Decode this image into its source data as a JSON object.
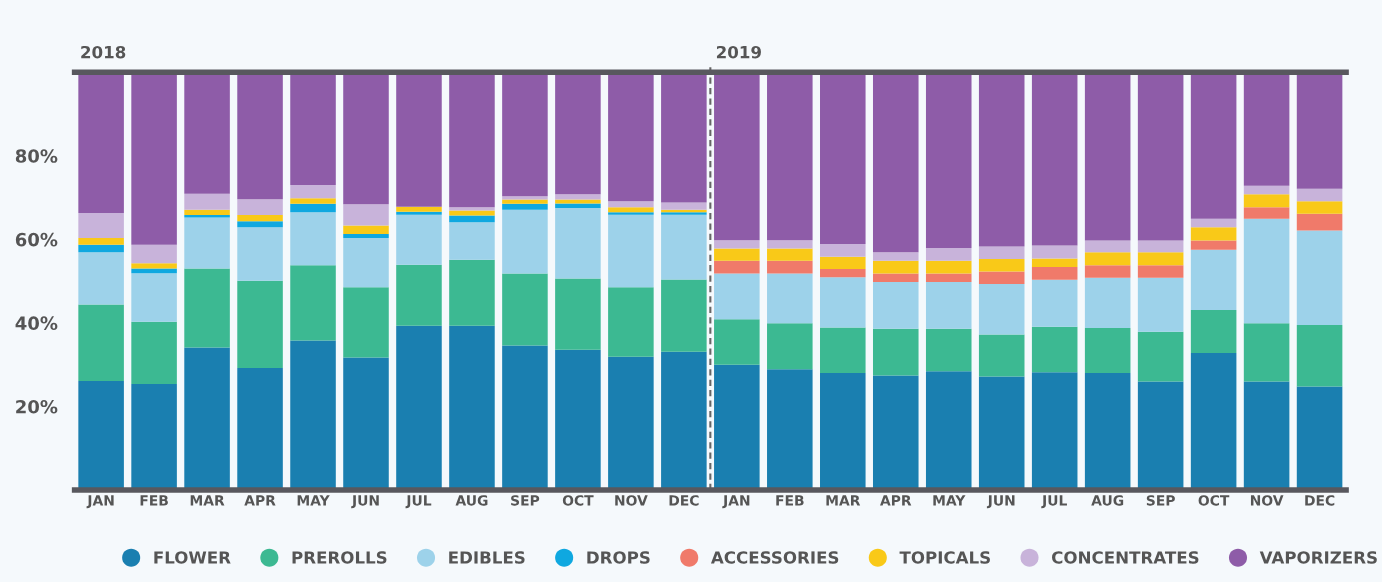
{
  "chart_data": {
    "type": "bar",
    "stacked": true,
    "categories": [
      "JAN",
      "FEB",
      "MAR",
      "APR",
      "MAY",
      "JUN",
      "JUL",
      "AUG",
      "SEP",
      "OCT",
      "NOV",
      "DEC",
      "JAN",
      "FEB",
      "MAR",
      "APR",
      "MAY",
      "JUN",
      "JUL",
      "AUG",
      "SEP",
      "OCT",
      "NOV",
      "DEC"
    ],
    "series": [
      {
        "name": "FLOWER",
        "color": "#1a7fb0",
        "values": [
          26.1,
          25.4,
          34.1,
          29.2,
          35.8,
          31.7,
          39.3,
          39.3,
          34.6,
          33.6,
          31.9,
          33.1,
          30,
          28.9,
          28,
          27.4,
          28.4,
          27.2,
          28.2,
          28,
          26,
          32.8,
          26,
          24.8
        ]
      },
      {
        "name": "PREROLLS",
        "color": "#3cb992",
        "values": [
          18.3,
          14.9,
          18.9,
          20.9,
          18,
          16.8,
          14.6,
          15.8,
          17.2,
          17,
          16.6,
          17.3,
          10.9,
          11,
          10.9,
          11.2,
          10.2,
          10,
          10.9,
          10.8,
          11.9,
          10.3,
          13.9,
          14.7
        ]
      },
      {
        "name": "EDIBLES",
        "color": "#9dd2ea",
        "values": [
          12.5,
          11.6,
          12.2,
          12.8,
          12.7,
          11.8,
          12,
          9,
          15.3,
          16.9,
          17.4,
          15.5,
          10.9,
          11.9,
          12,
          11.2,
          11.2,
          12.1,
          11.2,
          12,
          12.9,
          14.4,
          25,
          22.6
        ]
      },
      {
        "name": "DROPS",
        "color": "#0fa8e0",
        "values": [
          1.8,
          1.1,
          0.6,
          1.4,
          2,
          1,
          0.7,
          1.6,
          1.4,
          1.1,
          0.6,
          0.6,
          0,
          0,
          0,
          0,
          0,
          0,
          0,
          0,
          0,
          0,
          0,
          0
        ]
      },
      {
        "name": "ACCESSORIES",
        "color": "#f07a6a",
        "values": [
          0,
          0,
          0,
          0,
          0,
          0,
          0,
          0,
          0,
          0,
          0,
          0,
          3.1,
          3.1,
          2,
          2,
          2,
          3,
          3.1,
          3,
          3,
          2.2,
          2.8,
          4
        ]
      },
      {
        "name": "TOPICALS",
        "color": "#f9c918",
        "values": [
          1.6,
          1.3,
          1.3,
          1.5,
          1.3,
          2,
          1.2,
          1.2,
          1,
          0.9,
          1.2,
          0.6,
          2.9,
          2.9,
          2.9,
          3.1,
          3.1,
          3,
          2,
          3.1,
          3.1,
          3.2,
          3.1,
          3
        ]
      },
      {
        "name": "CONCENTRATES",
        "color": "#c8b3da",
        "values": [
          6,
          4.4,
          3.8,
          3.8,
          3.2,
          5.1,
          0,
          0.8,
          0.8,
          1.3,
          1.4,
          1.7,
          2,
          2,
          3.1,
          2,
          3,
          3,
          3.1,
          2.8,
          2.8,
          2,
          2,
          3
        ]
      },
      {
        "name": "VAPORIZERS",
        "color": "#8e5ca8",
        "values": [
          33.7,
          41.3,
          29.1,
          30.4,
          27,
          31.6,
          32.2,
          32.3,
          29.7,
          29.2,
          30.9,
          31.2,
          40.2,
          40.2,
          41.1,
          43.1,
          42.1,
          41.7,
          41.5,
          40.3,
          40.3,
          35.1,
          27.2,
          27.9
        ]
      }
    ],
    "ylim": [
      0,
      100
    ],
    "yticks": [
      {
        "value": 20,
        "label": "20%"
      },
      {
        "value": 40,
        "label": "40%"
      },
      {
        "value": 60,
        "label": "60%"
      },
      {
        "value": 80,
        "label": "80%"
      }
    ],
    "annotations": [
      "2018",
      "2019"
    ],
    "grid": false,
    "legend": "bottom",
    "marker": "circle"
  }
}
